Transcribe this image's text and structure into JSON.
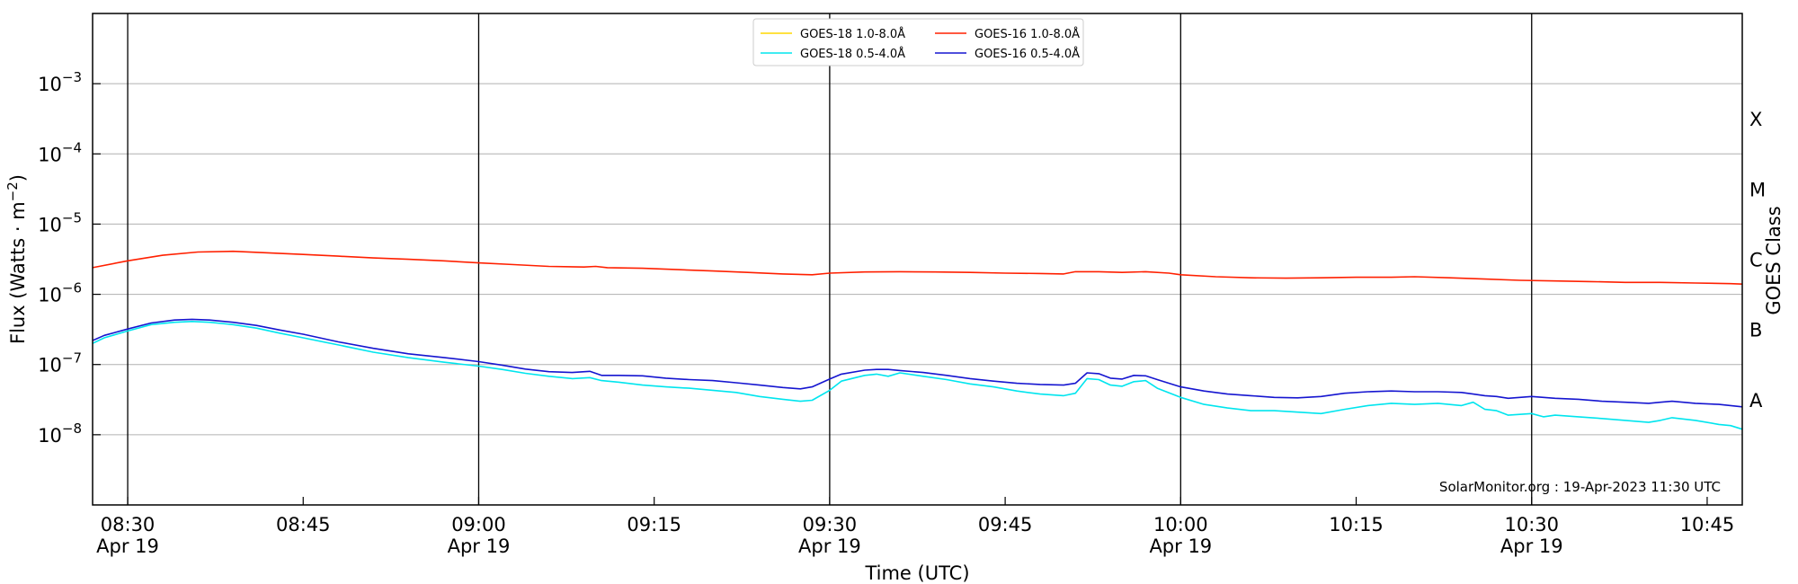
{
  "chart_data": {
    "type": "line",
    "title": "",
    "xlabel": "Time (UTC)",
    "ylabel_prefix": "Flux (Watts · m",
    "ylabel_sup": "−2",
    "ylabel_suffix": ")",
    "right_label": "GOES Class",
    "credit": "SolarMonitor.org : 19-Apr-2023 11:30 UTC",
    "y_scale": "log",
    "ylim": [
      1e-09,
      0.01
    ],
    "xlim_minutes": [
      507,
      648
    ],
    "grid": "horizontal",
    "legend_position": "top-center",
    "x_ticks": [
      {
        "t": 510,
        "line1": "08:30",
        "line2": "Apr 19",
        "major": true
      },
      {
        "t": 525,
        "line1": "08:45",
        "line2": "",
        "major": false
      },
      {
        "t": 540,
        "line1": "09:00",
        "line2": "Apr 19",
        "major": true
      },
      {
        "t": 555,
        "line1": "09:15",
        "line2": "",
        "major": false
      },
      {
        "t": 570,
        "line1": "09:30",
        "line2": "Apr 19",
        "major": true
      },
      {
        "t": 585,
        "line1": "09:45",
        "line2": "",
        "major": false
      },
      {
        "t": 600,
        "line1": "10:00",
        "line2": "Apr 19",
        "major": true
      },
      {
        "t": 615,
        "line1": "10:15",
        "line2": "",
        "major": false
      },
      {
        "t": 630,
        "line1": "10:30",
        "line2": "Apr 19",
        "major": true
      },
      {
        "t": 645,
        "line1": "10:45",
        "line2": "",
        "major": false
      }
    ],
    "y_ticks": [
      {
        "exp": -8,
        "label": "10",
        "sup": "−8"
      },
      {
        "exp": -7,
        "label": "10",
        "sup": "−7"
      },
      {
        "exp": -6,
        "label": "10",
        "sup": "−6"
      },
      {
        "exp": -5,
        "label": "10",
        "sup": "−5"
      },
      {
        "exp": -4,
        "label": "10",
        "sup": "−4"
      },
      {
        "exp": -3,
        "label": "10",
        "sup": "−3"
      }
    ],
    "goes_classes": [
      {
        "label": "A",
        "exp": -7.5
      },
      {
        "label": "B",
        "exp": -6.5
      },
      {
        "label": "C",
        "exp": -5.5
      },
      {
        "label": "M",
        "exp": -4.5
      },
      {
        "label": "X",
        "exp": -3.5
      }
    ],
    "series": [
      {
        "name": "GOES-18 1.0-8.0Å",
        "color": "#ffd700",
        "x": [],
        "y": []
      },
      {
        "name": "GOES-18 0.5-4.0Å",
        "color": "#00e5ee",
        "x": [
          507,
          508,
          510,
          512,
          514,
          515.5,
          517,
          519,
          521,
          523,
          525,
          528,
          531,
          534,
          537,
          540,
          542,
          544,
          546,
          548,
          549.5,
          550.5,
          552,
          554,
          556,
          558,
          560,
          562,
          564,
          566,
          567.5,
          568.5,
          570,
          571,
          573,
          574,
          575,
          576,
          578,
          580,
          582,
          584,
          586,
          588,
          590,
          591,
          592,
          593,
          594,
          595,
          596,
          597,
          598,
          600,
          602,
          604,
          606,
          608,
          610,
          612,
          614,
          616,
          618,
          620,
          622,
          624,
          625,
          626,
          627,
          628,
          630,
          631,
          632,
          634,
          636,
          638,
          640,
          641,
          642,
          644,
          646,
          647,
          648
        ],
        "y": [
          2e-07,
          2.4e-07,
          3e-07,
          3.7e-07,
          4e-07,
          4.1e-07,
          4e-07,
          3.7e-07,
          3.3e-07,
          2.8e-07,
          2.4e-07,
          1.9e-07,
          1.5e-07,
          1.25e-07,
          1.08e-07,
          9.5e-08,
          8.5e-08,
          7.5e-08,
          6.8e-08,
          6.3e-08,
          6.5e-08,
          5.9e-08,
          5.6e-08,
          5.1e-08,
          4.8e-08,
          4.6e-08,
          4.3e-08,
          4e-08,
          3.5e-08,
          3.2e-08,
          3e-08,
          3.1e-08,
          4.3e-08,
          5.8e-08,
          7e-08,
          7.3e-08,
          6.8e-08,
          7.6e-08,
          6.8e-08,
          6.1e-08,
          5.3e-08,
          4.8e-08,
          4.2e-08,
          3.8e-08,
          3.6e-08,
          3.9e-08,
          6.3e-08,
          6.1e-08,
          5.1e-08,
          4.9e-08,
          5.7e-08,
          5.9e-08,
          4.6e-08,
          3.4e-08,
          2.7e-08,
          2.4e-08,
          2.2e-08,
          2.2e-08,
          2.1e-08,
          2e-08,
          2.3e-08,
          2.6e-08,
          2.8e-08,
          2.7e-08,
          2.8e-08,
          2.6e-08,
          2.9e-08,
          2.3e-08,
          2.2e-08,
          1.9e-08,
          2e-08,
          1.8e-08,
          1.9e-08,
          1.8e-08,
          1.7e-08,
          1.6e-08,
          1.5e-08,
          1.6e-08,
          1.75e-08,
          1.6e-08,
          1.4e-08,
          1.35e-08,
          1.2e-08
        ]
      },
      {
        "name": "GOES-16 1.0-8.0Å",
        "color": "#ff2000",
        "x": [
          507,
          510,
          513,
          516,
          519,
          522,
          525,
          528,
          531,
          534,
          537,
          540,
          543,
          546,
          549,
          550,
          551,
          554,
          557,
          560,
          563,
          566,
          568.5,
          570,
          573,
          576,
          579,
          582,
          585,
          588,
          590,
          591,
          593,
          595,
          597,
          599,
          600,
          603,
          606,
          609,
          612,
          615,
          618,
          620,
          623,
          626,
          629,
          632,
          635,
          638,
          641,
          644,
          647,
          648
        ],
        "y": [
          2.4e-06,
          3e-06,
          3.6e-06,
          4e-06,
          4.1e-06,
          3.9e-06,
          3.7e-06,
          3.5e-06,
          3.3e-06,
          3.15e-06,
          3e-06,
          2.8e-06,
          2.65e-06,
          2.5e-06,
          2.45e-06,
          2.5e-06,
          2.4e-06,
          2.35e-06,
          2.25e-06,
          2.15e-06,
          2.05e-06,
          1.95e-06,
          1.9e-06,
          2e-06,
          2.08e-06,
          2.1e-06,
          2.08e-06,
          2.05e-06,
          2e-06,
          1.98e-06,
          1.95e-06,
          2.1e-06,
          2.1e-06,
          2.05e-06,
          2.1e-06,
          2e-06,
          1.9e-06,
          1.78e-06,
          1.72e-06,
          1.7e-06,
          1.72e-06,
          1.75e-06,
          1.75e-06,
          1.78e-06,
          1.72e-06,
          1.65e-06,
          1.58e-06,
          1.55e-06,
          1.52e-06,
          1.48e-06,
          1.48e-06,
          1.45e-06,
          1.42e-06,
          1.4e-06
        ]
      },
      {
        "name": "GOES-16 0.5-4.0Å",
        "color": "#1515d0",
        "x": [
          507,
          508,
          510,
          512,
          514,
          515.5,
          517,
          519,
          521,
          523,
          525,
          528,
          531,
          534,
          537,
          540,
          542,
          544,
          546,
          548,
          549.5,
          550.5,
          552,
          554,
          556,
          558,
          560,
          562,
          564,
          566,
          567.5,
          568.5,
          570,
          571,
          573,
          574,
          575,
          576,
          578,
          580,
          582,
          584,
          586,
          588,
          590,
          591,
          592,
          593,
          594,
          595,
          596,
          597,
          598,
          600,
          602,
          604,
          606,
          608,
          610,
          612,
          614,
          616,
          618,
          620,
          622,
          624,
          625,
          626,
          627,
          628,
          630,
          631,
          632,
          634,
          636,
          638,
          640,
          641,
          642,
          644,
          646,
          647,
          648
        ],
        "y": [
          2.2e-07,
          2.6e-07,
          3.2e-07,
          3.9e-07,
          4.3e-07,
          4.4e-07,
          4.3e-07,
          4e-07,
          3.6e-07,
          3.1e-07,
          2.7e-07,
          2.1e-07,
          1.7e-07,
          1.42e-07,
          1.26e-07,
          1.1e-07,
          9.8e-08,
          8.6e-08,
          7.9e-08,
          7.7e-08,
          8e-08,
          7e-08,
          7e-08,
          6.9e-08,
          6.4e-08,
          6.1e-08,
          5.9e-08,
          5.5e-08,
          5.1e-08,
          4.7e-08,
          4.5e-08,
          4.8e-08,
          6.2e-08,
          7.3e-08,
          8.3e-08,
          8.5e-08,
          8.5e-08,
          8.2e-08,
          7.7e-08,
          7e-08,
          6.3e-08,
          5.8e-08,
          5.4e-08,
          5.2e-08,
          5.1e-08,
          5.4e-08,
          7.6e-08,
          7.4e-08,
          6.4e-08,
          6.2e-08,
          7e-08,
          6.9e-08,
          6.1e-08,
          4.8e-08,
          4.2e-08,
          3.8e-08,
          3.6e-08,
          3.4e-08,
          3.35e-08,
          3.5e-08,
          3.9e-08,
          4.1e-08,
          4.2e-08,
          4.1e-08,
          4.1e-08,
          4e-08,
          3.8e-08,
          3.6e-08,
          3.5e-08,
          3.3e-08,
          3.5e-08,
          3.4e-08,
          3.3e-08,
          3.2e-08,
          3e-08,
          2.9e-08,
          2.8e-08,
          2.9e-08,
          3e-08,
          2.8e-08,
          2.7e-08,
          2.6e-08,
          2.5e-08
        ]
      }
    ]
  }
}
